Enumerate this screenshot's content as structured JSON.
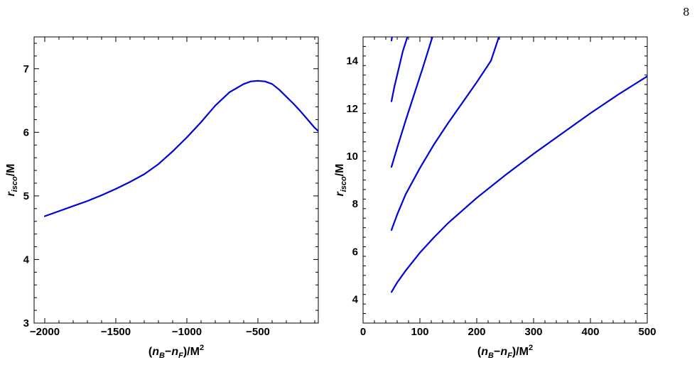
{
  "page_number": "8",
  "chart_data": [
    {
      "type": "line",
      "title": "",
      "color": "#0000dd",
      "xlim": [
        -2075,
        -75
      ],
      "ylim": [
        3,
        7.5
      ],
      "xticks_major": [
        -2000,
        -1500,
        -1000,
        -500
      ],
      "xticks_major_labels": [
        "−2000",
        "−1500",
        "−1000",
        "−500"
      ],
      "yticks_major": [
        3,
        4,
        5,
        6,
        7
      ],
      "yticks_major_labels": [
        "3",
        "4",
        "5",
        "6",
        "7"
      ],
      "xlabel": "(n_B−n_F)/M^2",
      "ylabel": "r_isco/M",
      "series": [
        {
          "x": [
            -2000,
            -1900,
            -1800,
            -1700,
            -1600,
            -1500,
            -1400,
            -1300,
            -1200,
            -1100,
            -1000,
            -900,
            -800,
            -700,
            -600,
            -550,
            -500,
            -450,
            -400,
            -350,
            -300,
            -250,
            -200,
            -150,
            -100,
            -75
          ],
          "y": [
            4.68,
            4.76,
            4.84,
            4.92,
            5.01,
            5.11,
            5.22,
            5.34,
            5.5,
            5.7,
            5.92,
            6.16,
            6.42,
            6.63,
            6.76,
            6.8,
            6.81,
            6.8,
            6.76,
            6.67,
            6.56,
            6.45,
            6.33,
            6.2,
            6.07,
            6.02
          ]
        }
      ]
    },
    {
      "type": "line",
      "title": "",
      "color": "#0000dd",
      "xlim": [
        0,
        500
      ],
      "ylim": [
        3,
        15
      ],
      "xticks_major": [
        0,
        100,
        200,
        300,
        400,
        500
      ],
      "xticks_major_labels": [
        "0",
        "100",
        "200",
        "300",
        "400",
        "500"
      ],
      "yticks_major": [
        4,
        6,
        8,
        10,
        12,
        14
      ],
      "yticks_major_labels": [
        "4",
        "6",
        "8",
        "10",
        "12",
        "14"
      ],
      "xlabel": "(n_B−n_F)/M^2",
      "ylabel": "r_isco/M",
      "series": [
        {
          "x": [
            50,
            60,
            75,
            100,
            125,
            150,
            200,
            250,
            300,
            350,
            400,
            450,
            500
          ],
          "y": [
            4.3,
            4.7,
            5.2,
            5.95,
            6.6,
            7.2,
            8.25,
            9.2,
            10.1,
            10.95,
            11.8,
            12.6,
            13.35
          ]
        },
        {
          "x": [
            50,
            60,
            75,
            100,
            125,
            150,
            175,
            200,
            225,
            239
          ],
          "y": [
            6.9,
            7.55,
            8.4,
            9.5,
            10.5,
            11.4,
            12.25,
            13.1,
            14.0,
            15.0
          ]
        },
        {
          "x": [
            50,
            60,
            75,
            90,
            105,
            122
          ],
          "y": [
            9.55,
            10.35,
            11.5,
            12.6,
            13.7,
            15.0
          ]
        },
        {
          "x": [
            50,
            55,
            62,
            70,
            78
          ],
          "y": [
            12.3,
            12.9,
            13.6,
            14.4,
            15.0
          ]
        },
        {
          "x": [
            50,
            51
          ],
          "y": [
            14.85,
            15.0
          ]
        }
      ]
    }
  ]
}
